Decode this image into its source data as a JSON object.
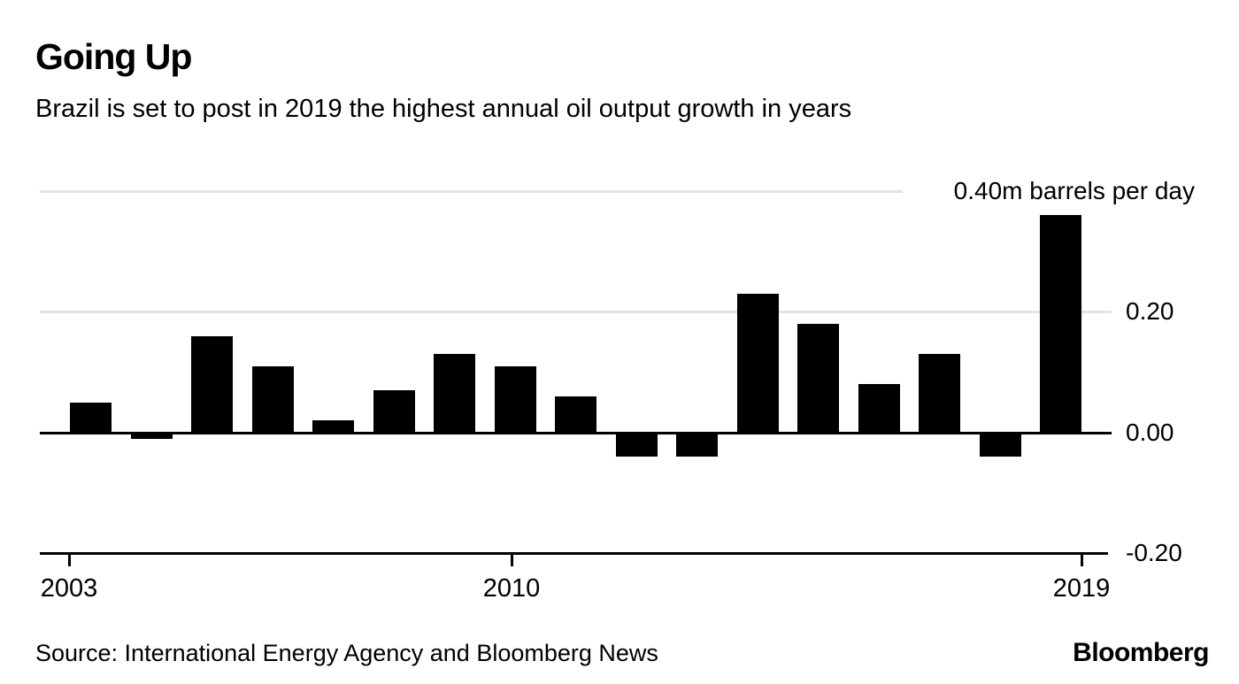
{
  "header": {
    "title": "Going Up",
    "subtitle": "Brazil is set to post in 2019 the highest annual oil output growth in years"
  },
  "footer": {
    "source": "Source: International Energy Agency and Bloomberg News",
    "brand": "Bloomberg"
  },
  "chart_data": {
    "type": "bar",
    "title": "Going Up",
    "subtitle": "Brazil is set to post in 2019 the highest annual oil output growth in years",
    "unit": "m barrels per day",
    "categories": [
      2003,
      2004,
      2005,
      2006,
      2007,
      2008,
      2009,
      2010,
      2011,
      2012,
      2013,
      2014,
      2015,
      2016,
      2017,
      2018,
      2019
    ],
    "values": [
      0.05,
      -0.01,
      0.16,
      0.11,
      0.02,
      0.07,
      0.13,
      0.11,
      0.06,
      -0.04,
      -0.04,
      0.23,
      0.18,
      0.08,
      0.13,
      -0.04,
      0.36
    ],
    "ylim": [
      -0.2,
      0.4
    ],
    "y_ticks": [
      {
        "value": 0.4,
        "label": "0.40m barrels per day"
      },
      {
        "value": 0.2,
        "label": "0.20"
      },
      {
        "value": 0.0,
        "label": "0.00"
      },
      {
        "value": -0.2,
        "label": "-0.20"
      }
    ],
    "x_tick_labels": [
      "2003",
      "2010",
      "2019"
    ],
    "grid": "horizontal",
    "legend": "none",
    "bar_color": "#000000",
    "grid_color": "#e4e4e4",
    "axis_color": "#000000"
  }
}
